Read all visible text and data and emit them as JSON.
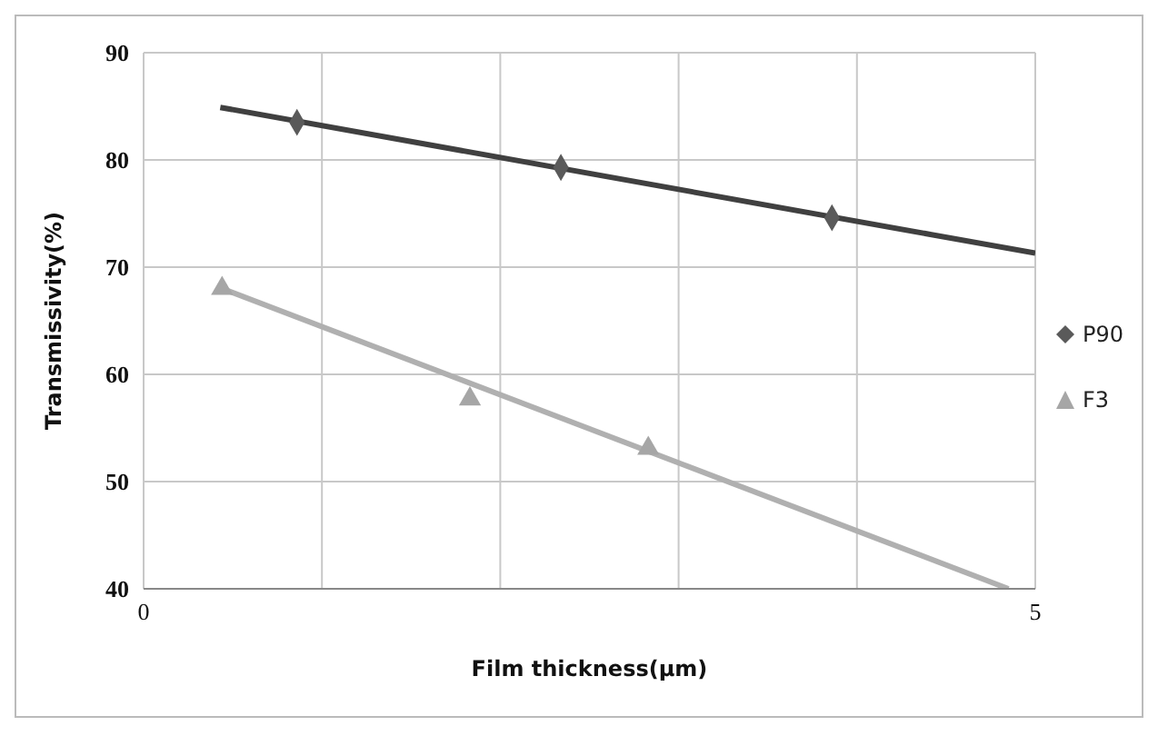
{
  "chart_data": {
    "type": "scatter",
    "xlabel": "Film  thickness(μm)",
    "ylabel": "Transmissivity(%)",
    "xlim": [
      0,
      5
    ],
    "xticks": [
      0,
      {
        "value": 1,
        "label": null
      },
      {
        "value": 2,
        "label": null
      },
      {
        "value": 3,
        "label": null
      },
      {
        "value": 4,
        "label": null
      },
      5
    ],
    "ylim": [
      40,
      90
    ],
    "yticks": [
      40,
      50,
      60,
      70,
      80,
      90
    ],
    "grid": true,
    "legend": "right",
    "series": [
      {
        "name": "P90",
        "marker": "diamond",
        "color": "#5a5a5a",
        "x": [
          0.86,
          2.34,
          3.86
        ],
        "values": [
          83.5,
          79.3,
          74.6
        ]
      },
      {
        "name": "F3",
        "marker": "triangle",
        "color": "#a6a6a6",
        "x": [
          0.44,
          1.83,
          2.83
        ],
        "values": [
          68.0,
          57.7,
          53.1
        ]
      },
      {
        "type": "line",
        "marker": "none",
        "color": "#404040",
        "x": [
          0.43,
          5
        ],
        "values": [
          84.9,
          71.3
        ]
      },
      {
        "type": "line",
        "marker": "none",
        "color": "#b0b0b0",
        "x": [
          0.44,
          4.85
        ],
        "values": [
          68.0,
          40.0
        ]
      }
    ]
  }
}
